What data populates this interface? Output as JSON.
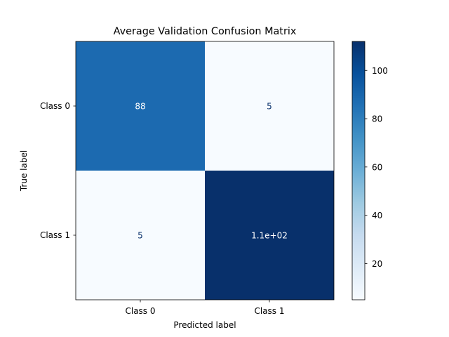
{
  "chart_data": {
    "type": "heatmap",
    "title": "Average Validation Confusion Matrix",
    "xlabel": "Predicted label",
    "ylabel": "True label",
    "x_categories": [
      "Class 0",
      "Class 1"
    ],
    "y_categories": [
      "Class 0",
      "Class 1"
    ],
    "values": [
      [
        88,
        5
      ],
      [
        5,
        112
      ]
    ],
    "cell_labels": [
      [
        "88",
        "5"
      ],
      [
        "5",
        "1.1e+02"
      ]
    ],
    "colormap": "Blues",
    "colorbar": {
      "range": [
        5,
        112
      ],
      "ticks": [
        20,
        40,
        60,
        80,
        100
      ],
      "tick_labels": [
        "20",
        "40",
        "60",
        "80",
        "100"
      ]
    },
    "colors": {
      "low": "#f7fbff",
      "high": "#08306b",
      "text_on_dark": "#ffffff",
      "text_on_light": "#08306b"
    },
    "grid": false
  }
}
